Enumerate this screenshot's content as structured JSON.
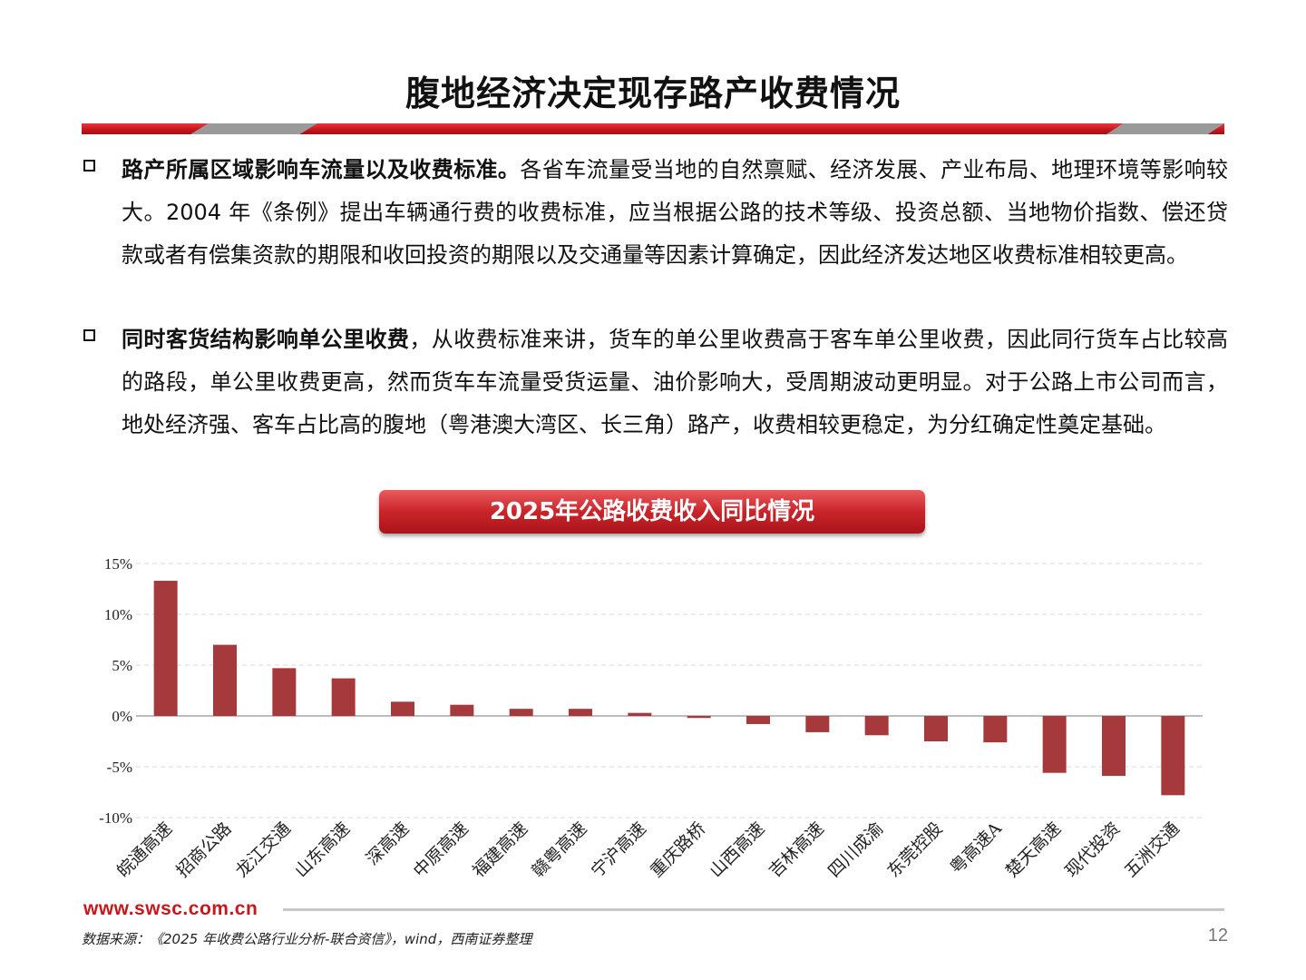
{
  "slide": {
    "title": "腹地经济决定现存路产收费情况",
    "bullets": [
      {
        "bold": "路产所属区域影响车流量以及收费标准。",
        "text": "各省车流量受当地的自然禀赋、经济发展、产业布局、地理环境等影响较大。2004 年《条例》提出车辆通行费的收费标准，应当根据公路的技术等级、投资总额、当地物价指数、偿还贷款或者有偿集资款的期限和收回投资的期限以及交通量等因素计算确定，因此经济发达地区收费标准相较更高。"
      },
      {
        "bold": "同时客货结构影响单公里收费",
        "text": "，从收费标准来讲，货车的单公里收费高于客车单公里收费，因此同行货车占比较高的路段，单公里收费更高，然而货车车流量受货运量、油价影响大，受周期波动更明显。对于公路上市公司而言，地处经济强、客车占比高的腹地（粤港澳大湾区、长三角）路产，收费相较更稳定，为分红确定性奠定基础。"
      }
    ],
    "chart_title": "2025年公路收费收入同比情况",
    "footer_url": "www.swsc.com.cn",
    "source": "数据来源：《2025 年收费公路行业分析-联合资信》，wind，西南证券整理",
    "page_number": "12",
    "accent_color": "#c8161d",
    "bar_color": "#a5393b"
  },
  "chart_data": {
    "type": "bar",
    "title": "2025年公路收费收入同比情况",
    "categories": [
      "皖通高速",
      "招商公路",
      "龙江交通",
      "山东高速",
      "深高速",
      "中原高速",
      "福建高速",
      "赣粤高速",
      "宁沪高速",
      "重庆路桥",
      "山西高速",
      "吉林高速",
      "四川成渝",
      "东莞控股",
      "粤高速A",
      "楚天高速",
      "现代投资",
      "五洲交通"
    ],
    "values": [
      13.3,
      7.0,
      4.7,
      3.7,
      1.4,
      1.1,
      0.7,
      0.7,
      0.3,
      -0.2,
      -0.8,
      -1.6,
      -1.9,
      -2.5,
      -2.6,
      -5.6,
      -5.9,
      -7.8
    ],
    "unit": "%",
    "ylim": [
      -10,
      15
    ],
    "yticks": [
      15,
      10,
      5,
      0,
      -5,
      -10
    ],
    "ytick_labels": [
      "15%",
      "10%",
      "5%",
      "0%",
      "-5%",
      "-10%"
    ],
    "grid": true,
    "legend": "none"
  }
}
